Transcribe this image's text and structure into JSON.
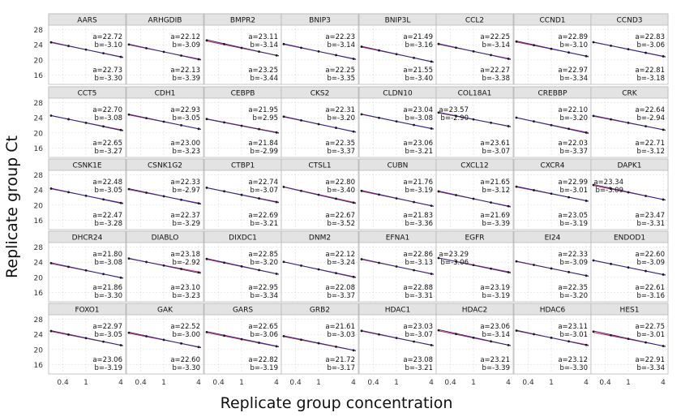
{
  "chart_data": {
    "type": "scatter",
    "layout": "faceted line grid",
    "xlabel": "Replicate group concentration",
    "ylabel": "Replicate group Ct",
    "x_scale": "log",
    "x_ticks": [
      "0.4",
      "1",
      "4"
    ],
    "y_ticks": [
      "16",
      "20",
      "24",
      "28"
    ],
    "xlim": [
      0.25,
      4.4
    ],
    "ylim": [
      13.5,
      29
    ],
    "grid": true,
    "x": [
      0.25,
      0.5,
      1,
      2,
      4
    ],
    "series_colors": {
      "a": "#d81b3c",
      "b": "#1f2e9c"
    },
    "panels": [
      {
        "title": "AARS",
        "top_a": "22.72",
        "top_b": "-3.10",
        "bot_a": "22.73",
        "bot_b": "-3.30"
      },
      {
        "title": "ARHGDIB",
        "top_a": "22.12",
        "top_b": "-3.09",
        "bot_a": "22.13",
        "bot_b": "-3.39"
      },
      {
        "title": "BMPR2",
        "top_a": "23.11",
        "top_b": "-3.14",
        "bot_a": "23.25",
        "bot_b": "-3.44"
      },
      {
        "title": "BNIP3",
        "top_a": "22.23",
        "top_b": "-3.14",
        "bot_a": "22.25",
        "bot_b": "-3.35"
      },
      {
        "title": "BNIP3L",
        "top_a": "21.49",
        "top_b": "-3.16",
        "bot_a": "21.55",
        "bot_b": "-3.40"
      },
      {
        "title": "CCL2",
        "top_a": "22.25",
        "top_b": "-3.14",
        "bot_a": "22.27",
        "bot_b": "-3.38"
      },
      {
        "title": "CCND1",
        "top_a": "22.89",
        "top_b": "-3.10",
        "bot_a": "22.97",
        "bot_b": "-3.34"
      },
      {
        "title": "CCND3",
        "top_a": "22.83",
        "top_b": "-3.06",
        "bot_a": "22.81",
        "bot_b": "-3.18"
      },
      {
        "title": "CCT5",
        "top_a": "22.70",
        "top_b": "-3.08",
        "bot_a": "22.65",
        "bot_b": "-3.27"
      },
      {
        "title": "CDH1",
        "top_a": "22.93",
        "top_b": "-3.05",
        "bot_a": "23.00",
        "bot_b": "-3.23"
      },
      {
        "title": "CEBPB",
        "top_a": "21.95",
        "top_b": "2.95",
        "bot_a": "21.84",
        "bot_b": "-2.99"
      },
      {
        "title": "CKS2",
        "top_a": "22.31",
        "top_b": "-3.20",
        "bot_a": "22.35",
        "bot_b": "-3.37"
      },
      {
        "title": "CLDN10",
        "top_a": "23.04",
        "top_b": "-3.08",
        "bot_a": "23.06",
        "bot_b": "-3.21"
      },
      {
        "title": "COL18A1",
        "top_a": "23.57",
        "top_b": "-2.90",
        "bot_a": "23.61",
        "bot_b": "-3.07"
      },
      {
        "title": "CREBBP",
        "top_a": "22.10",
        "top_b": "-3.20",
        "bot_a": "22.03",
        "bot_b": "-3.37"
      },
      {
        "title": "CRK",
        "top_a": "22.64",
        "top_b": "-2.94",
        "bot_a": "22.71",
        "bot_b": "-3.12"
      },
      {
        "title": "CSNK1E",
        "top_a": "22.48",
        "top_b": "-3.05",
        "bot_a": "22.47",
        "bot_b": "-3.28"
      },
      {
        "title": "CSNK1G2",
        "top_a": "22.33",
        "top_b": "-2.97",
        "bot_a": "22.37",
        "bot_b": "-3.29"
      },
      {
        "title": "CTBP1",
        "top_a": "22.74",
        "top_b": "-3.07",
        "bot_a": "22.69",
        "bot_b": "-3.21"
      },
      {
        "title": "CTSL1",
        "top_a": "22.80",
        "top_b": "-3.40",
        "bot_a": "22.67",
        "bot_b": "-3.52"
      },
      {
        "title": "CUBN",
        "top_a": "21.76",
        "top_b": "-3.19",
        "bot_a": "21.83",
        "bot_b": "-3.36"
      },
      {
        "title": "CXCL12",
        "top_a": "21.65",
        "top_b": "-3.12",
        "bot_a": "21.69",
        "bot_b": "-3.39"
      },
      {
        "title": "CXCR4",
        "top_a": "22.99",
        "top_b": "-3.01",
        "bot_a": "23.05",
        "bot_b": "-3.19"
      },
      {
        "title": "DAPK1",
        "top_a": "23.34",
        "top_b": "-3.09",
        "bot_a": "23.47",
        "bot_b": "-3.31"
      },
      {
        "title": "DHCR24",
        "top_a": "21.80",
        "top_b": "-3.08",
        "bot_a": "21.86",
        "bot_b": "-3.30"
      },
      {
        "title": "DIABLO",
        "top_a": "23.18",
        "top_b": "-2.92",
        "bot_a": "23.10",
        "bot_b": "-3.23"
      },
      {
        "title": "DIXDC1",
        "top_a": "22.85",
        "top_b": "-3.20",
        "bot_a": "22.95",
        "bot_b": "-3.34"
      },
      {
        "title": "DNM2",
        "top_a": "22.12",
        "top_b": "-3.24",
        "bot_a": "22.08",
        "bot_b": "-3.37"
      },
      {
        "title": "EFNA1",
        "top_a": "22.86",
        "top_b": "-3.13",
        "bot_a": "22.88",
        "bot_b": "-3.31"
      },
      {
        "title": "EGFR",
        "top_a": "23.29",
        "top_b": "-3.06",
        "bot_a": "23.19",
        "bot_b": "-3.19"
      },
      {
        "title": "EI24",
        "top_a": "22.33",
        "top_b": "-3.09",
        "bot_a": "22.35",
        "bot_b": "-3.20"
      },
      {
        "title": "ENDOD1",
        "top_a": "22.60",
        "top_b": "-3.09",
        "bot_a": "22.61",
        "bot_b": "-3.16"
      },
      {
        "title": "FOXO1",
        "top_a": "22.97",
        "top_b": "-3.05",
        "bot_a": "23.06",
        "bot_b": "-3.19"
      },
      {
        "title": "GAK",
        "top_a": "22.52",
        "top_b": "-3.00",
        "bot_a": "22.60",
        "bot_b": "-3.30"
      },
      {
        "title": "GARS",
        "top_a": "22.65",
        "top_b": "-3.06",
        "bot_a": "22.82",
        "bot_b": "-3.19"
      },
      {
        "title": "GRB2",
        "top_a": "21.61",
        "top_b": "-3.03",
        "bot_a": "21.72",
        "bot_b": "-3.17"
      },
      {
        "title": "HDAC1",
        "top_a": "23.03",
        "top_b": "-3.07",
        "bot_a": "23.08",
        "bot_b": "-3.21"
      },
      {
        "title": "HDAC2",
        "top_a": "23.06",
        "top_b": "-3.14",
        "bot_a": "23.21",
        "bot_b": "-3.39"
      },
      {
        "title": "HDAC6",
        "top_a": "23.11",
        "top_b": "-3.01",
        "bot_a": "23.12",
        "bot_b": "-3.30"
      },
      {
        "title": "HES1",
        "top_a": "22.75",
        "top_b": "-3.01",
        "bot_a": "22.91",
        "bot_b": "-3.34"
      }
    ]
  }
}
